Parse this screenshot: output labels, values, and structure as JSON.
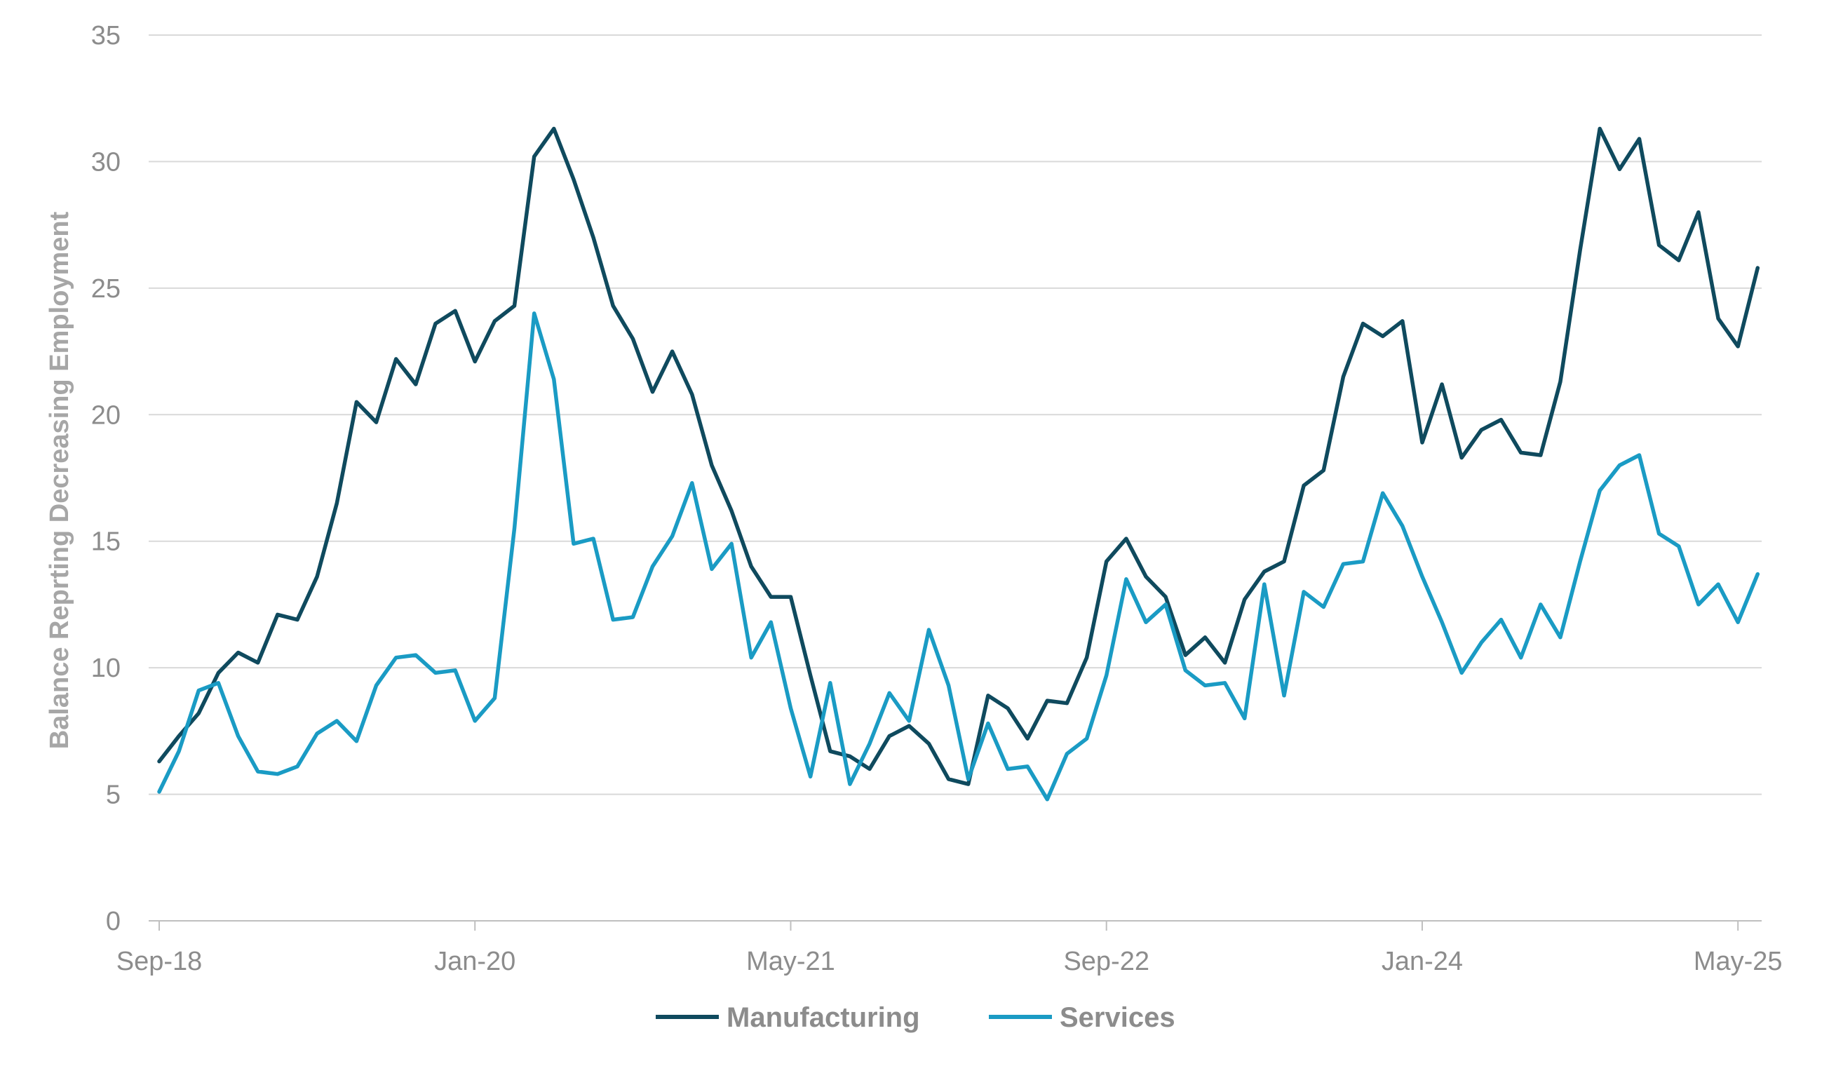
{
  "chart_data": {
    "type": "line",
    "ylabel": "Balance Reprting Decreasing Employment",
    "xlabel": "",
    "ylim": [
      0,
      35
    ],
    "yticks": [
      0,
      5,
      10,
      15,
      20,
      25,
      30,
      35
    ],
    "xtick_labels": [
      "Sep-18",
      "Jan-20",
      "May-21",
      "Sep-22",
      "Jan-24",
      "May-25"
    ],
    "x_start": "Sep-18",
    "x_end": "Jul-25",
    "gridlines": "horizontal",
    "legend_position": "bottom-center",
    "colors": {
      "Manufacturing": "#0f4a5e",
      "Services": "#1a9bc4"
    },
    "series": [
      {
        "name": "Manufacturing",
        "values": [
          6.3,
          7.3,
          8.2,
          9.8,
          10.6,
          10.2,
          12.1,
          11.9,
          13.6,
          16.5,
          20.5,
          19.7,
          22.2,
          21.2,
          23.6,
          24.1,
          22.1,
          23.7,
          24.3,
          30.2,
          31.3,
          29.3,
          27.0,
          24.3,
          23.0,
          20.9,
          22.5,
          20.8,
          18.0,
          16.2,
          14.0,
          12.8,
          12.8,
          9.7,
          6.7,
          6.5,
          6.0,
          7.3,
          7.7,
          7.0,
          5.6,
          5.4,
          8.9,
          8.4,
          7.2,
          8.7,
          8.6,
          10.4,
          14.2,
          15.1,
          13.6,
          12.8,
          10.5,
          11.2,
          10.2,
          12.7,
          13.8,
          14.2,
          17.2,
          17.8,
          21.5,
          23.6,
          23.1,
          23.7,
          18.9,
          21.2,
          18.3,
          19.4,
          19.8,
          18.5,
          18.4,
          21.3,
          26.5,
          31.3,
          29.7,
          30.9,
          26.7,
          26.1,
          28.0,
          23.8,
          22.7,
          25.8
        ]
      },
      {
        "name": "Services",
        "values": [
          5.1,
          6.7,
          9.1,
          9.4,
          7.3,
          5.9,
          5.8,
          6.1,
          7.4,
          7.9,
          7.1,
          9.3,
          10.4,
          10.5,
          9.8,
          9.9,
          7.9,
          8.8,
          15.5,
          24.0,
          21.4,
          14.9,
          15.1,
          11.9,
          12.0,
          14.0,
          15.2,
          17.3,
          13.9,
          14.9,
          10.4,
          11.8,
          8.4,
          5.7,
          9.4,
          5.4,
          7.0,
          9.0,
          7.9,
          11.5,
          9.3,
          5.6,
          7.8,
          6.0,
          6.1,
          4.8,
          6.6,
          7.2,
          9.7,
          13.5,
          11.8,
          12.5,
          9.9,
          9.3,
          9.4,
          8.0,
          13.3,
          8.9,
          13.0,
          12.4,
          14.1,
          14.2,
          16.9,
          15.6,
          13.6,
          11.8,
          9.8,
          11.0,
          11.9,
          10.4,
          12.5,
          11.2,
          14.2,
          17.0,
          18.0,
          18.4,
          15.3,
          14.8,
          12.5,
          13.3,
          11.8,
          13.7
        ]
      }
    ]
  }
}
